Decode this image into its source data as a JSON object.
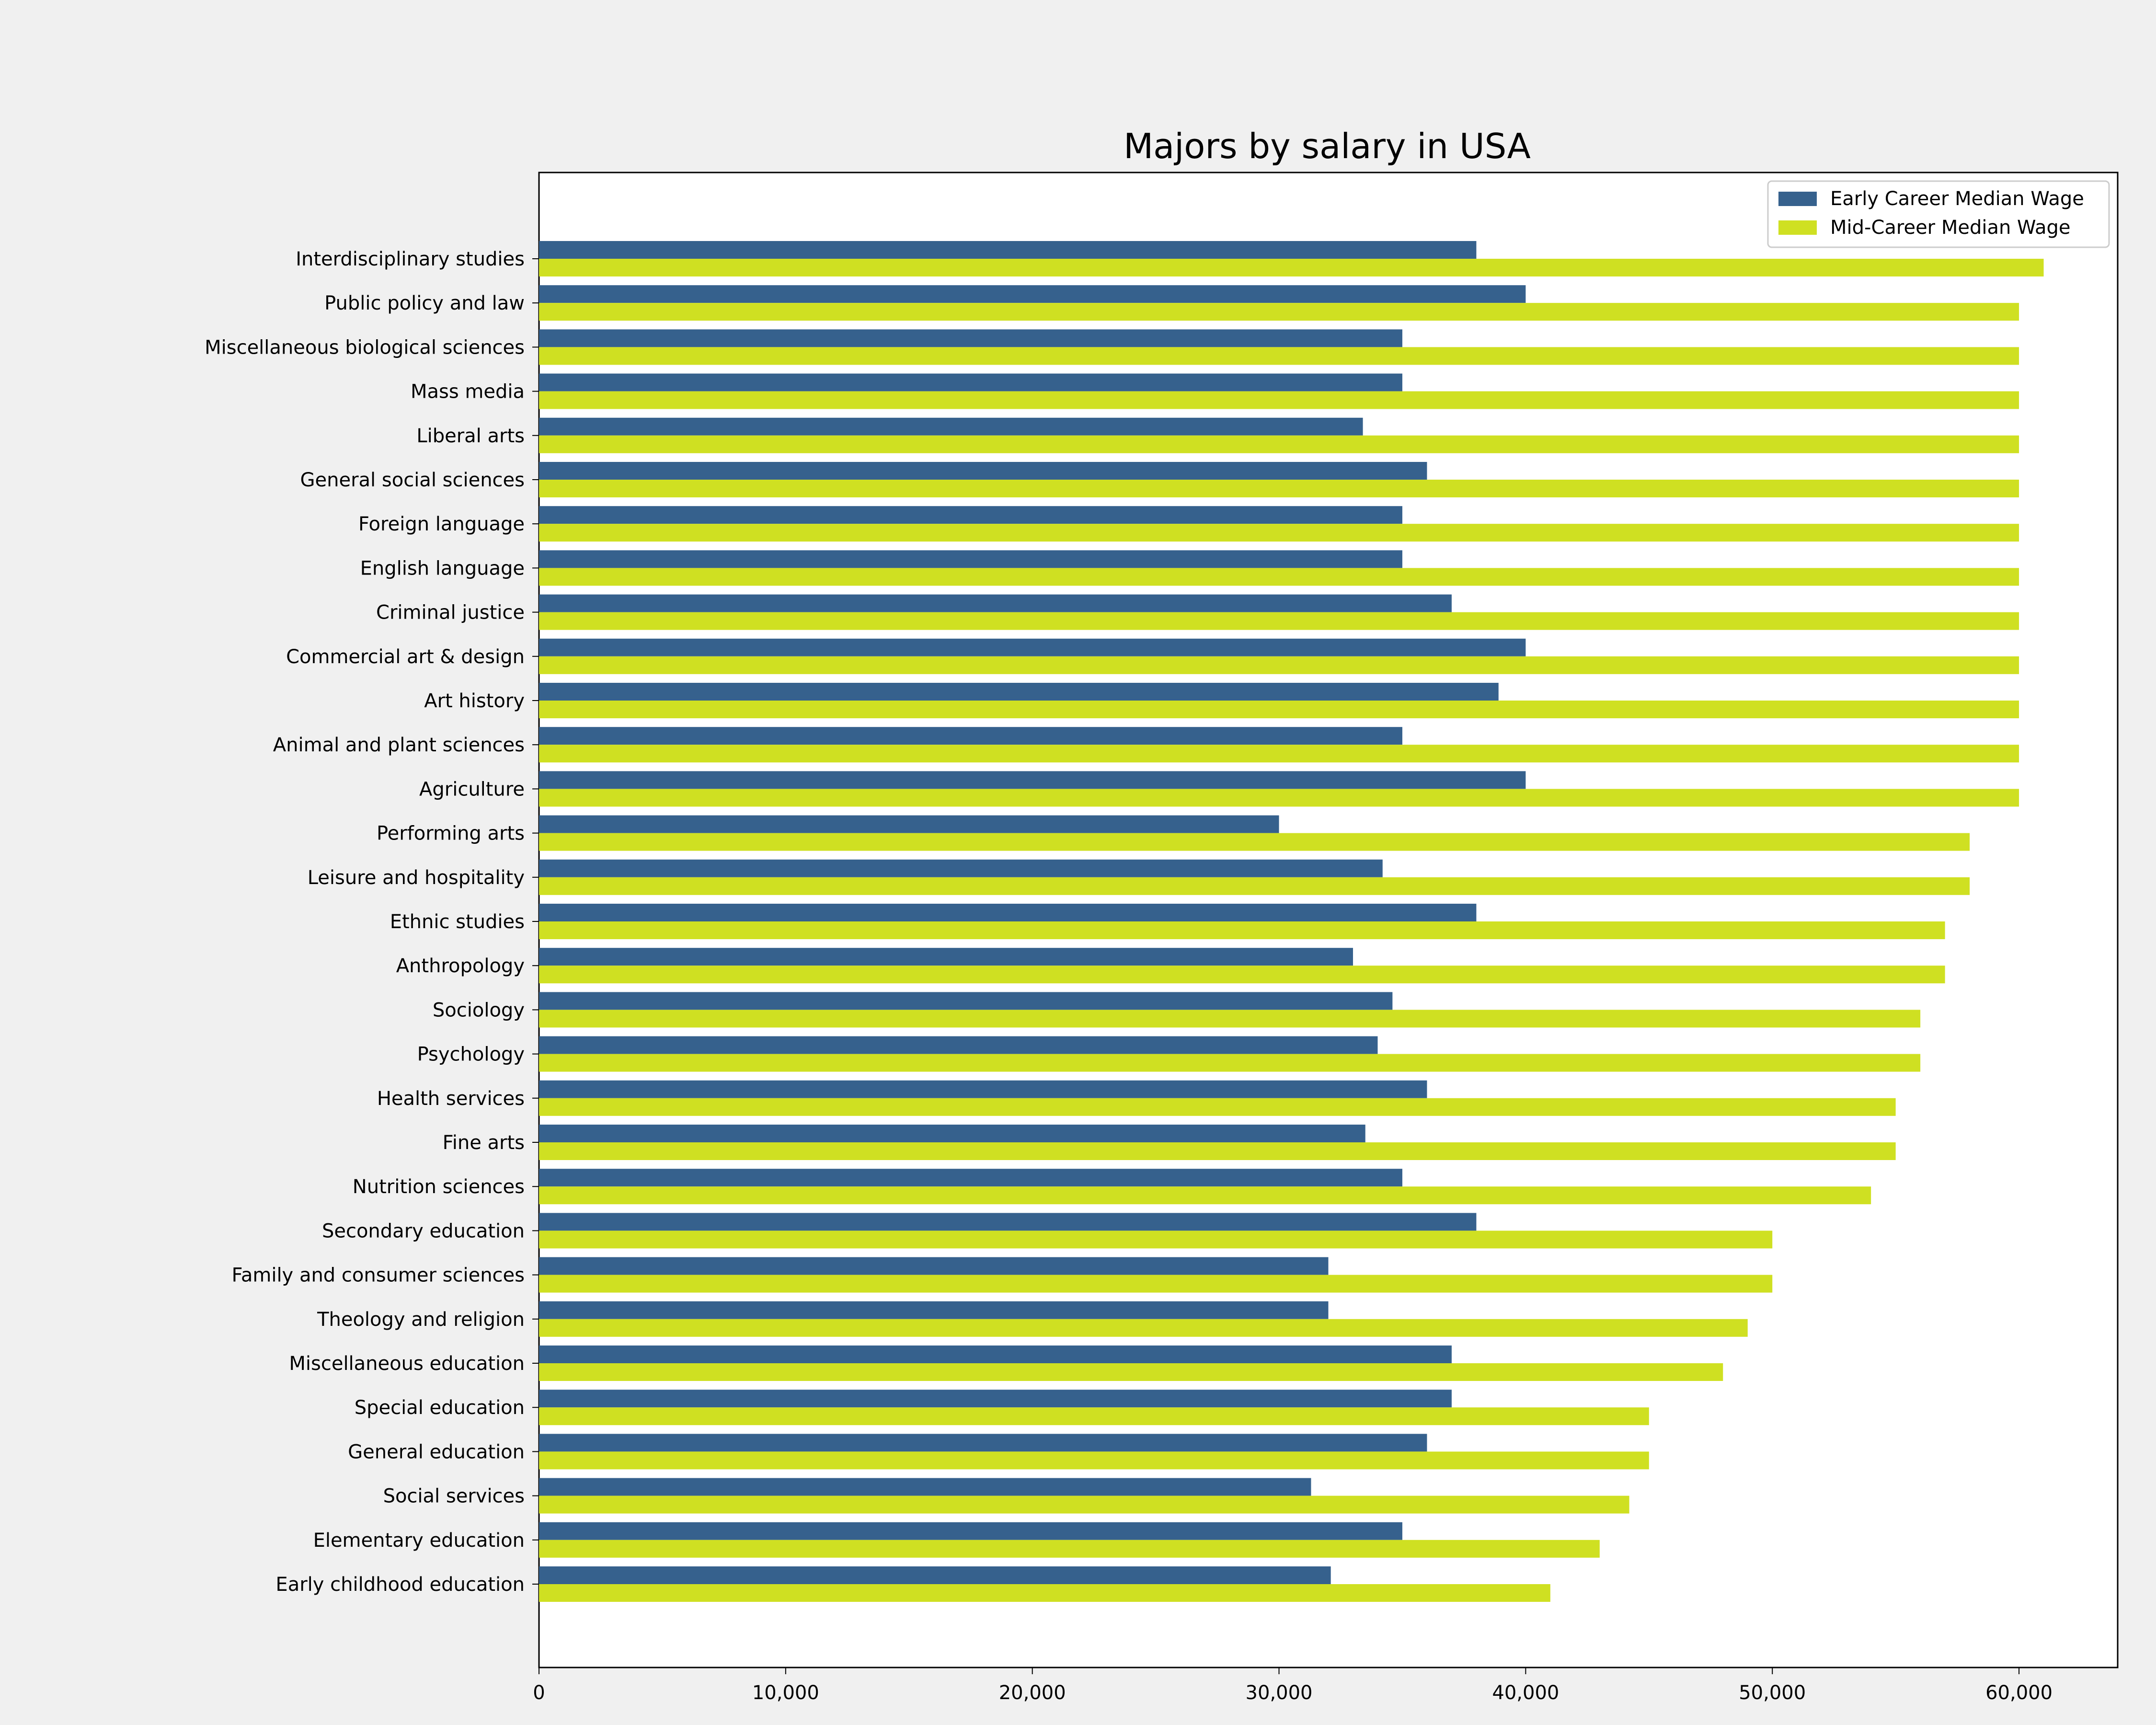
{
  "chart_data": {
    "type": "bar",
    "orientation": "horizontal",
    "title": "Majors by salary in USA",
    "xlabel": "",
    "ylabel": "",
    "xlim": [
      0,
      64000
    ],
    "xticks": [
      0,
      10000,
      20000,
      30000,
      40000,
      50000,
      60000
    ],
    "xtick_labels": [
      "0",
      "10,000",
      "20,000",
      "30,000",
      "40,000",
      "50,000",
      "60,000"
    ],
    "grid": false,
    "legend_position": "top-right",
    "categories": [
      "Interdisciplinary studies",
      "Public policy and law",
      "Miscellaneous biological sciences",
      "Mass media",
      "Liberal arts",
      "General social sciences",
      "Foreign language",
      "English language",
      "Criminal justice",
      "Commercial art & design",
      "Art history",
      "Animal and plant sciences",
      "Agriculture",
      "Performing arts",
      "Leisure and hospitality",
      "Ethnic studies",
      "Anthropology",
      "Sociology",
      "Psychology",
      "Health services",
      "Fine arts",
      "Nutrition sciences",
      "Secondary education",
      "Family and consumer sciences",
      "Theology and religion",
      "Miscellaneous education",
      "Special education",
      "General education",
      "Social services",
      "Elementary education",
      "Early childhood education"
    ],
    "series": [
      {
        "name": "Early Career Median Wage",
        "color": "#36618d",
        "values": [
          38000,
          40000,
          35000,
          35000,
          33400,
          36000,
          35000,
          35000,
          37000,
          40000,
          38900,
          35000,
          40000,
          30000,
          34200,
          38000,
          33000,
          34600,
          34000,
          36000,
          33500,
          35000,
          38000,
          32000,
          32000,
          37000,
          37000,
          36000,
          31300,
          35000,
          32100
        ]
      },
      {
        "name": "Mid-Career Median Wage",
        "color": "#cfe022",
        "values": [
          61000,
          60000,
          60000,
          60000,
          60000,
          60000,
          60000,
          60000,
          60000,
          60000,
          60000,
          60000,
          60000,
          58000,
          58000,
          57000,
          57000,
          56000,
          56000,
          55000,
          55000,
          54000,
          50000,
          50000,
          49000,
          48000,
          45000,
          45000,
          44200,
          43000,
          41000
        ]
      }
    ]
  }
}
